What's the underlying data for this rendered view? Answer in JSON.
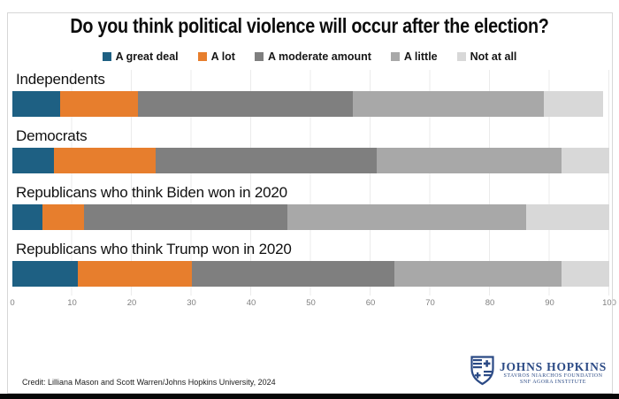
{
  "chart_data": {
    "type": "bar",
    "orientation": "horizontal",
    "stacked": true,
    "title": "Do you think political violence will occur after the election?",
    "categories": [
      "Independents",
      "Democrats",
      "Republicans who think Biden won in 2020",
      "Republicans who think Trump won in 2020"
    ],
    "series": [
      {
        "name": "A great deal",
        "color": "#1e6083",
        "values": [
          8,
          7,
          5,
          11
        ]
      },
      {
        "name": "A lot",
        "color": "#e77e2d",
        "values": [
          13,
          17,
          7,
          19
        ]
      },
      {
        "name": "A moderate amount",
        "color": "#7f7f7f",
        "values": [
          36,
          37,
          34,
          34
        ]
      },
      {
        "name": "A little",
        "color": "#a8a8a8",
        "values": [
          32,
          31,
          40,
          28
        ]
      },
      {
        "name": "Not at all",
        "color": "#d8d8d8",
        "values": [
          10,
          8,
          14,
          8
        ]
      }
    ],
    "xlim": [
      0,
      100
    ],
    "x_ticks": [
      0,
      10,
      20,
      30,
      40,
      50,
      60,
      70,
      80,
      90,
      100
    ],
    "grid": true,
    "legend_position": "top"
  },
  "footer": {
    "credit": "Credit: Lilliana Mason and Scott Warren/Johns Hopkins University, 2024",
    "logo": {
      "line1": "JOHNS HOPKINS",
      "line2": "STAVROS NIARCHOS FOUNDATION",
      "line3": "SNF AGORA INSTITUTE",
      "color": "#2b4a85"
    }
  }
}
